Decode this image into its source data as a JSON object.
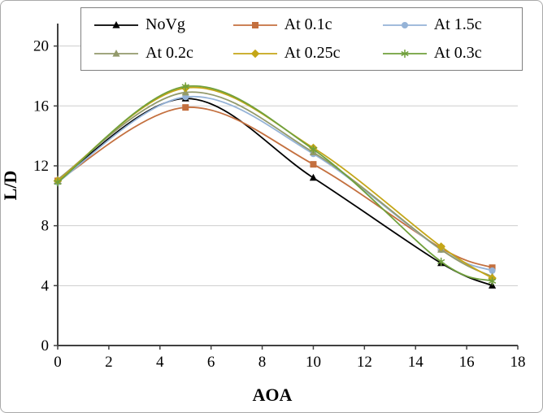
{
  "chart_data": {
    "type": "line",
    "title": "",
    "xlabel": "AOA",
    "ylabel": "L/D",
    "xlim": [
      0,
      18
    ],
    "ylim": [
      0,
      21.5
    ],
    "xticks": [
      0,
      2,
      4,
      6,
      8,
      10,
      12,
      14,
      16,
      18
    ],
    "yticks": [
      0,
      4,
      8,
      12,
      16,
      20
    ],
    "grid": "horizontal",
    "legend_position": "top",
    "x": [
      0,
      5,
      10,
      15,
      17
    ],
    "series": [
      {
        "name": "NoVg",
        "color": "#000000",
        "marker": "triangle",
        "values": [
          11.0,
          16.5,
          11.2,
          5.5,
          4.0
        ]
      },
      {
        "name": "At 0.1c",
        "color": "#c4703f",
        "marker": "square",
        "values": [
          11.0,
          15.9,
          12.1,
          6.5,
          5.2
        ]
      },
      {
        "name": "At 1.5c",
        "color": "#95b3d7",
        "marker": "circle",
        "values": [
          10.9,
          16.6,
          12.8,
          6.4,
          5.0
        ]
      },
      {
        "name": "At 0.2c",
        "color": "#939a6b",
        "marker": "triangle",
        "values": [
          11.1,
          16.9,
          12.9,
          6.4,
          4.6
        ]
      },
      {
        "name": "At 0.25c",
        "color": "#c4a618",
        "marker": "diamond",
        "values": [
          11.0,
          17.2,
          13.2,
          6.6,
          4.5
        ]
      },
      {
        "name": "At 0.3c",
        "color": "#70a03c",
        "marker": "asterisk",
        "values": [
          10.9,
          17.3,
          13.1,
          5.6,
          4.3
        ]
      }
    ],
    "colors": {
      "gridline": "#cdcdcd",
      "axis": "#404040",
      "legend_border": "#7f7f7f",
      "figure_border": "#a9a9a9"
    }
  }
}
